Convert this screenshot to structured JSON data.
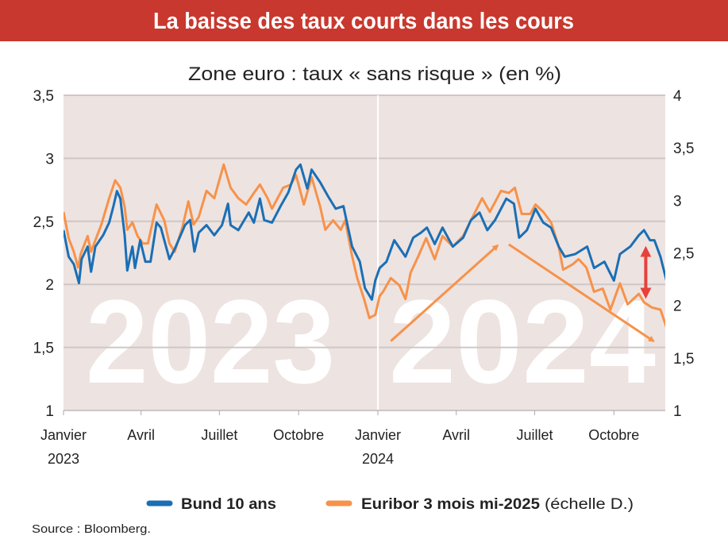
{
  "header": {
    "title": "La baisse des taux courts dans les cours",
    "color": "#c8382e"
  },
  "source": "Source : Bloomberg.",
  "chart_data": {
    "type": "line",
    "title": "Zone euro : taux « sans risque » (en %)",
    "xlabel": "",
    "ylabel": "",
    "x_range": [
      "2023-01-01",
      "2024-12-01"
    ],
    "ylim_left": [
      1,
      3.5
    ],
    "ylim_right": [
      1,
      4
    ],
    "left_ticks": [
      "1",
      "1,5",
      "2",
      "2,5",
      "3",
      "3,5"
    ],
    "right_ticks": [
      "1",
      "1,5",
      "2",
      "2,5",
      "3",
      "3,5",
      "4"
    ],
    "x_ticks": [
      {
        "date": "2023-01-01",
        "label": "Janvier",
        "year": "2023"
      },
      {
        "date": "2023-04-01",
        "label": "Avril",
        "year": ""
      },
      {
        "date": "2023-07-01",
        "label": "Juillet",
        "year": ""
      },
      {
        "date": "2023-10-01",
        "label": "Octobre",
        "year": ""
      },
      {
        "date": "2024-01-01",
        "label": "Janvier",
        "year": "2024"
      },
      {
        "date": "2024-04-01",
        "label": "Avril",
        "year": ""
      },
      {
        "date": "2024-07-01",
        "label": "Juillet",
        "year": ""
      },
      {
        "date": "2024-10-01",
        "label": "Octobre",
        "year": ""
      }
    ],
    "year_watermarks": [
      "2023",
      "2024"
    ],
    "grid": true,
    "background": "#ede3e1",
    "legend_placement": "bottom",
    "series": [
      {
        "name": "Bund 10 ans",
        "axis": "left",
        "color": "#1a6fb5",
        "points": [
          [
            "2023-01-01",
            2.43
          ],
          [
            "2023-01-07",
            2.22
          ],
          [
            "2023-01-13",
            2.16
          ],
          [
            "2023-01-19",
            2.01
          ],
          [
            "2023-01-22",
            2.2
          ],
          [
            "2023-01-29",
            2.3
          ],
          [
            "2023-02-02",
            2.1
          ],
          [
            "2023-02-07",
            2.3
          ],
          [
            "2023-02-16",
            2.39
          ],
          [
            "2023-02-23",
            2.49
          ],
          [
            "2023-02-28",
            2.62
          ],
          [
            "2023-03-04",
            2.74
          ],
          [
            "2023-03-08",
            2.68
          ],
          [
            "2023-03-13",
            2.39
          ],
          [
            "2023-03-16",
            2.11
          ],
          [
            "2023-03-22",
            2.3
          ],
          [
            "2023-03-25",
            2.13
          ],
          [
            "2023-03-31",
            2.35
          ],
          [
            "2023-04-06",
            2.18
          ],
          [
            "2023-04-12",
            2.18
          ],
          [
            "2023-04-19",
            2.49
          ],
          [
            "2023-04-24",
            2.45
          ],
          [
            "2023-05-04",
            2.2
          ],
          [
            "2023-05-10",
            2.28
          ],
          [
            "2023-05-22",
            2.47
          ],
          [
            "2023-05-28",
            2.51
          ],
          [
            "2023-06-02",
            2.26
          ],
          [
            "2023-06-07",
            2.41
          ],
          [
            "2023-06-16",
            2.47
          ],
          [
            "2023-06-25",
            2.39
          ],
          [
            "2023-07-04",
            2.47
          ],
          [
            "2023-07-11",
            2.64
          ],
          [
            "2023-07-14",
            2.47
          ],
          [
            "2023-07-23",
            2.43
          ],
          [
            "2023-08-04",
            2.57
          ],
          [
            "2023-08-10",
            2.49
          ],
          [
            "2023-08-17",
            2.68
          ],
          [
            "2023-08-22",
            2.51
          ],
          [
            "2023-08-31",
            2.49
          ],
          [
            "2023-09-10",
            2.62
          ],
          [
            "2023-09-19",
            2.73
          ],
          [
            "2023-09-28",
            2.91
          ],
          [
            "2023-10-03",
            2.95
          ],
          [
            "2023-10-11",
            2.76
          ],
          [
            "2023-10-16",
            2.91
          ],
          [
            "2023-10-26",
            2.81
          ],
          [
            "2023-11-04",
            2.7
          ],
          [
            "2023-11-13",
            2.6
          ],
          [
            "2023-11-22",
            2.62
          ],
          [
            "2023-12-02",
            2.3
          ],
          [
            "2023-12-11",
            2.18
          ],
          [
            "2023-12-17",
            1.97
          ],
          [
            "2023-12-25",
            1.88
          ],
          [
            "2023-12-29",
            2.03
          ],
          [
            "2024-01-03",
            2.13
          ],
          [
            "2024-01-11",
            2.18
          ],
          [
            "2024-01-20",
            2.35
          ],
          [
            "2024-02-02",
            2.22
          ],
          [
            "2024-02-11",
            2.37
          ],
          [
            "2024-02-20",
            2.41
          ],
          [
            "2024-02-27",
            2.45
          ],
          [
            "2024-03-07",
            2.32
          ],
          [
            "2024-03-16",
            2.45
          ],
          [
            "2024-03-28",
            2.3
          ],
          [
            "2024-04-09",
            2.37
          ],
          [
            "2024-04-18",
            2.51
          ],
          [
            "2024-04-28",
            2.57
          ],
          [
            "2024-05-07",
            2.43
          ],
          [
            "2024-05-16",
            2.51
          ],
          [
            "2024-05-29",
            2.68
          ],
          [
            "2024-06-07",
            2.64
          ],
          [
            "2024-06-13",
            2.37
          ],
          [
            "2024-06-22",
            2.43
          ],
          [
            "2024-07-02",
            2.6
          ],
          [
            "2024-07-11",
            2.49
          ],
          [
            "2024-07-20",
            2.45
          ],
          [
            "2024-07-29",
            2.3
          ],
          [
            "2024-08-05",
            2.22
          ],
          [
            "2024-08-17",
            2.24
          ],
          [
            "2024-08-31",
            2.3
          ],
          [
            "2024-09-08",
            2.13
          ],
          [
            "2024-09-20",
            2.18
          ],
          [
            "2024-10-01",
            2.03
          ],
          [
            "2024-10-08",
            2.24
          ],
          [
            "2024-10-20",
            2.3
          ],
          [
            "2024-10-30",
            2.39
          ],
          [
            "2024-11-05",
            2.43
          ],
          [
            "2024-11-12",
            2.35
          ],
          [
            "2024-11-17",
            2.35
          ],
          [
            "2024-11-24",
            2.22
          ],
          [
            "2024-12-01",
            2.03
          ]
        ]
      },
      {
        "name": "Euribor 3 mois mi-2025",
        "name_suffix": "(échelle D.)",
        "axis": "right",
        "color": "#f7924a",
        "points": [
          [
            "2023-01-01",
            2.89
          ],
          [
            "2023-01-07",
            2.64
          ],
          [
            "2023-01-13",
            2.51
          ],
          [
            "2023-01-18",
            2.36
          ],
          [
            "2023-01-21",
            2.49
          ],
          [
            "2023-01-29",
            2.66
          ],
          [
            "2023-02-02",
            2.51
          ],
          [
            "2023-02-07",
            2.62
          ],
          [
            "2023-02-14",
            2.77
          ],
          [
            "2023-02-23",
            3.02
          ],
          [
            "2023-03-02",
            3.19
          ],
          [
            "2023-03-08",
            3.12
          ],
          [
            "2023-03-13",
            2.94
          ],
          [
            "2023-03-16",
            2.72
          ],
          [
            "2023-03-22",
            2.79
          ],
          [
            "2023-03-28",
            2.66
          ],
          [
            "2023-04-03",
            2.59
          ],
          [
            "2023-04-09",
            2.59
          ],
          [
            "2023-04-19",
            2.96
          ],
          [
            "2023-04-28",
            2.81
          ],
          [
            "2023-05-04",
            2.59
          ],
          [
            "2023-05-10",
            2.51
          ],
          [
            "2023-05-19",
            2.74
          ],
          [
            "2023-05-26",
            2.99
          ],
          [
            "2023-06-01",
            2.77
          ],
          [
            "2023-06-07",
            2.84
          ],
          [
            "2023-06-16",
            3.09
          ],
          [
            "2023-06-25",
            3.02
          ],
          [
            "2023-07-06",
            3.34
          ],
          [
            "2023-07-14",
            3.12
          ],
          [
            "2023-07-23",
            3.02
          ],
          [
            "2023-08-01",
            2.96
          ],
          [
            "2023-08-10",
            3.07
          ],
          [
            "2023-08-17",
            3.15
          ],
          [
            "2023-08-26",
            3.02
          ],
          [
            "2023-08-31",
            2.92
          ],
          [
            "2023-09-13",
            3.12
          ],
          [
            "2023-09-22",
            3.15
          ],
          [
            "2023-09-28",
            3.24
          ],
          [
            "2023-10-07",
            2.96
          ],
          [
            "2023-10-16",
            3.22
          ],
          [
            "2023-10-26",
            2.94
          ],
          [
            "2023-11-01",
            2.72
          ],
          [
            "2023-11-10",
            2.81
          ],
          [
            "2023-11-19",
            2.72
          ],
          [
            "2023-11-24",
            2.81
          ],
          [
            "2023-12-02",
            2.47
          ],
          [
            "2023-12-08",
            2.26
          ],
          [
            "2023-12-16",
            2.06
          ],
          [
            "2023-12-22",
            1.88
          ],
          [
            "2023-12-29",
            1.91
          ],
          [
            "2024-01-03",
            2.09
          ],
          [
            "2024-01-07",
            2.13
          ],
          [
            "2024-01-16",
            2.26
          ],
          [
            "2024-01-26",
            2.19
          ],
          [
            "2024-02-02",
            2.06
          ],
          [
            "2024-02-08",
            2.31
          ],
          [
            "2024-02-17",
            2.47
          ],
          [
            "2024-02-26",
            2.64
          ],
          [
            "2024-03-07",
            2.44
          ],
          [
            "2024-03-16",
            2.66
          ],
          [
            "2024-03-28",
            2.56
          ],
          [
            "2024-04-09",
            2.66
          ],
          [
            "2024-04-18",
            2.81
          ],
          [
            "2024-05-01",
            3.02
          ],
          [
            "2024-05-10",
            2.89
          ],
          [
            "2024-05-23",
            3.09
          ],
          [
            "2024-06-01",
            3.07
          ],
          [
            "2024-06-08",
            3.12
          ],
          [
            "2024-06-16",
            2.87
          ],
          [
            "2024-06-26",
            2.87
          ],
          [
            "2024-07-02",
            2.96
          ],
          [
            "2024-07-11",
            2.89
          ],
          [
            "2024-07-20",
            2.79
          ],
          [
            "2024-07-29",
            2.56
          ],
          [
            "2024-08-03",
            2.34
          ],
          [
            "2024-08-14",
            2.39
          ],
          [
            "2024-08-21",
            2.44
          ],
          [
            "2024-08-30",
            2.36
          ],
          [
            "2024-09-08",
            2.13
          ],
          [
            "2024-09-18",
            2.16
          ],
          [
            "2024-09-27",
            1.96
          ],
          [
            "2024-10-08",
            2.21
          ],
          [
            "2024-10-17",
            2.01
          ],
          [
            "2024-10-30",
            2.11
          ],
          [
            "2024-11-05",
            2.03
          ],
          [
            "2024-11-14",
            1.98
          ],
          [
            "2024-11-24",
            1.96
          ],
          [
            "2024-12-01",
            1.79
          ]
        ]
      }
    ],
    "annotations": [
      {
        "type": "arrow",
        "color": "#f7924a",
        "axis": "right",
        "from": [
          "2024-01-16",
          1.66
        ],
        "to": [
          "2024-05-19",
          2.57
        ]
      },
      {
        "type": "arrow",
        "color": "#f7924a",
        "axis": "right",
        "from": [
          "2024-06-01",
          2.58
        ],
        "to": [
          "2024-11-16",
          1.66
        ]
      },
      {
        "type": "double-arrow",
        "color": "#e8403a",
        "axis": "left",
        "from": [
          "2024-11-07",
          2.28
        ],
        "to": [
          "2024-11-07",
          1.91
        ]
      }
    ]
  }
}
